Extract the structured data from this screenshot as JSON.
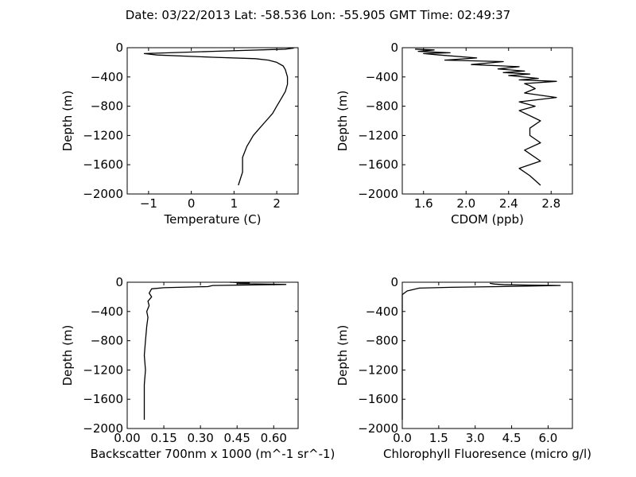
{
  "figure": {
    "title": "Date: 03/22/2013  Lat:  -58.536 Lon:  -55.905  GMT Time: 02:49:37"
  },
  "chart_data": [
    {
      "type": "line",
      "xlabel": "Temperature (C)",
      "ylabel": "Depth (m)",
      "xlim": [
        -1.5,
        2.5
      ],
      "ylim": [
        -2000,
        0
      ],
      "xticks": [
        -1,
        0,
        1,
        2
      ],
      "xtick_labels": [
        "−1",
        "0",
        "1",
        "2"
      ],
      "yticks": [
        0,
        -400,
        -800,
        -1200,
        -1600,
        -2000
      ],
      "ytick_labels": [
        "0",
        "−400",
        "−800",
        "−1200",
        "−1600",
        "−2000"
      ],
      "grid": false,
      "series": [
        {
          "x": [
            2.4,
            2.2,
            0.5,
            -1.1,
            -0.8,
            0.5,
            1.5,
            1.8,
            2.0,
            2.15,
            2.2,
            2.25,
            2.25,
            2.2,
            2.1,
            2.0,
            1.9,
            1.75,
            1.6,
            1.45,
            1.3,
            1.2,
            1.2,
            1.1
          ],
          "y": [
            -5,
            -20,
            -50,
            -80,
            -100,
            -130,
            -150,
            -170,
            -200,
            -250,
            -300,
            -400,
            -500,
            -600,
            -700,
            -800,
            -900,
            -1000,
            -1100,
            -1200,
            -1350,
            -1500,
            -1700,
            -1880
          ]
        }
      ]
    },
    {
      "type": "line",
      "xlabel": "CDOM (ppb)",
      "ylabel": "Depth (m)",
      "xlim": [
        1.4,
        3.0
      ],
      "ylim": [
        -2000,
        0
      ],
      "xticks": [
        1.6,
        2.0,
        2.4,
        2.8
      ],
      "xtick_labels": [
        "1.6",
        "2.0",
        "2.4",
        "2.8"
      ],
      "yticks": [
        0,
        -400,
        -800,
        -1200,
        -1600,
        -2000
      ],
      "ytick_labels": [
        "0",
        "−400",
        "−800",
        "−1200",
        "−1600",
        "−2000"
      ],
      "grid": false,
      "series": [
        {
          "x": [
            1.52,
            1.7,
            1.55,
            1.85,
            1.6,
            1.75,
            2.1,
            1.8,
            2.35,
            2.05,
            2.5,
            2.3,
            2.55,
            2.35,
            2.6,
            2.4,
            2.68,
            2.5,
            2.85,
            2.55,
            2.6,
            2.65,
            2.55,
            2.85,
            2.5,
            2.65,
            2.5,
            2.7,
            2.6,
            2.6,
            2.7,
            2.55,
            2.7,
            2.5,
            2.6,
            2.7
          ],
          "y": [
            -20,
            -30,
            -50,
            -70,
            -80,
            -100,
            -140,
            -170,
            -190,
            -230,
            -260,
            -290,
            -320,
            -340,
            -360,
            -380,
            -420,
            -440,
            -460,
            -490,
            -520,
            -560,
            -620,
            -680,
            -740,
            -800,
            -860,
            -1000,
            -1100,
            -1200,
            -1300,
            -1400,
            -1550,
            -1650,
            -1750,
            -1880
          ]
        }
      ]
    },
    {
      "type": "line",
      "xlabel": "Backscatter 700nm x 1000 (m^-1 sr^-1)",
      "ylabel": "Depth (m)",
      "xlim": [
        0,
        0.7
      ],
      "ylim": [
        -2000,
        0
      ],
      "xticks": [
        0,
        0.15,
        0.3,
        0.45,
        0.6
      ],
      "xtick_labels": [
        "0.00",
        "0.15",
        "0.30",
        "0.45",
        "0.60"
      ],
      "yticks": [
        0,
        -400,
        -800,
        -1200,
        -1600,
        -2000
      ],
      "ytick_labels": [
        "0",
        "−400",
        "−800",
        "−1200",
        "−1600",
        "−2000"
      ],
      "grid": false,
      "series": [
        {
          "x": [
            0.42,
            0.5,
            0.45,
            0.65,
            0.35,
            0.33,
            0.15,
            0.1,
            0.09,
            0.1,
            0.085,
            0.09,
            0.08,
            0.085,
            0.08,
            0.075,
            0.07,
            0.075,
            0.07,
            0.07,
            0.07
          ],
          "y": [
            0,
            -10,
            -20,
            -30,
            -45,
            -60,
            -75,
            -90,
            -150,
            -200,
            -260,
            -320,
            -400,
            -480,
            -600,
            -800,
            -1000,
            -1200,
            -1400,
            -1600,
            -1880
          ]
        }
      ]
    },
    {
      "type": "line",
      "xlabel": "Chlorophyll Fluoresence (micro g/l)",
      "ylabel": "Depth (m)",
      "xlim": [
        0,
        7
      ],
      "ylim": [
        -2000,
        0
      ],
      "xticks": [
        0,
        1.5,
        3.0,
        4.5,
        6.0
      ],
      "xtick_labels": [
        "0.0",
        "1.5",
        "3.0",
        "4.5",
        "6.0"
      ],
      "yticks": [
        0,
        -400,
        -800,
        -1200,
        -1600,
        -2000
      ],
      "ytick_labels": [
        "0",
        "−400",
        "−800",
        "−1200",
        "−1600",
        "−2000"
      ],
      "grid": false,
      "series": [
        {
          "x": [
            3.6,
            3.8,
            4.2,
            6.5,
            4.0,
            2.0,
            0.7,
            0.2,
            0.0,
            0.0
          ],
          "y": [
            -15,
            -25,
            -35,
            -45,
            -60,
            -70,
            -80,
            -120,
            -170,
            -1880
          ]
        }
      ]
    }
  ]
}
